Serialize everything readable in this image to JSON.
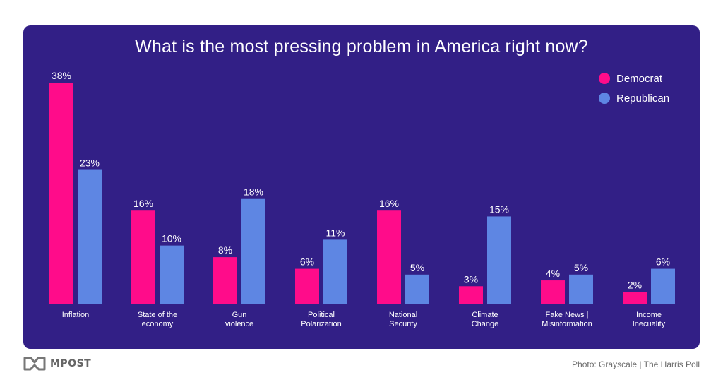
{
  "chart_data": {
    "type": "bar",
    "title": "What is the most pressing problem in America right now?",
    "categories": [
      [
        "Inflation"
      ],
      [
        "State of the",
        "economy"
      ],
      [
        "Gun",
        "violence"
      ],
      [
        "Political",
        "Polarization"
      ],
      [
        "National",
        "Security"
      ],
      [
        "Climate",
        "Change"
      ],
      [
        "Fake News |",
        "Misinformation"
      ],
      [
        "Income",
        "Inecuality"
      ]
    ],
    "series": [
      {
        "name": "Democrat",
        "color": "#ff0c8a",
        "values": [
          38,
          16,
          8,
          6,
          16,
          3,
          4,
          2
        ]
      },
      {
        "name": "Republican",
        "color": "#5e86e3",
        "values": [
          23,
          10,
          18,
          11,
          5,
          15,
          5,
          6
        ]
      }
    ],
    "value_suffix": "%",
    "ylim": [
      0,
      40
    ],
    "grid": false,
    "legend_position": "top-right"
  },
  "footer": {
    "brand": "MPOST",
    "credit": "Photo: Grayscale | The Harris Poll",
    "logo_icon": "mpost-logo-icon"
  }
}
